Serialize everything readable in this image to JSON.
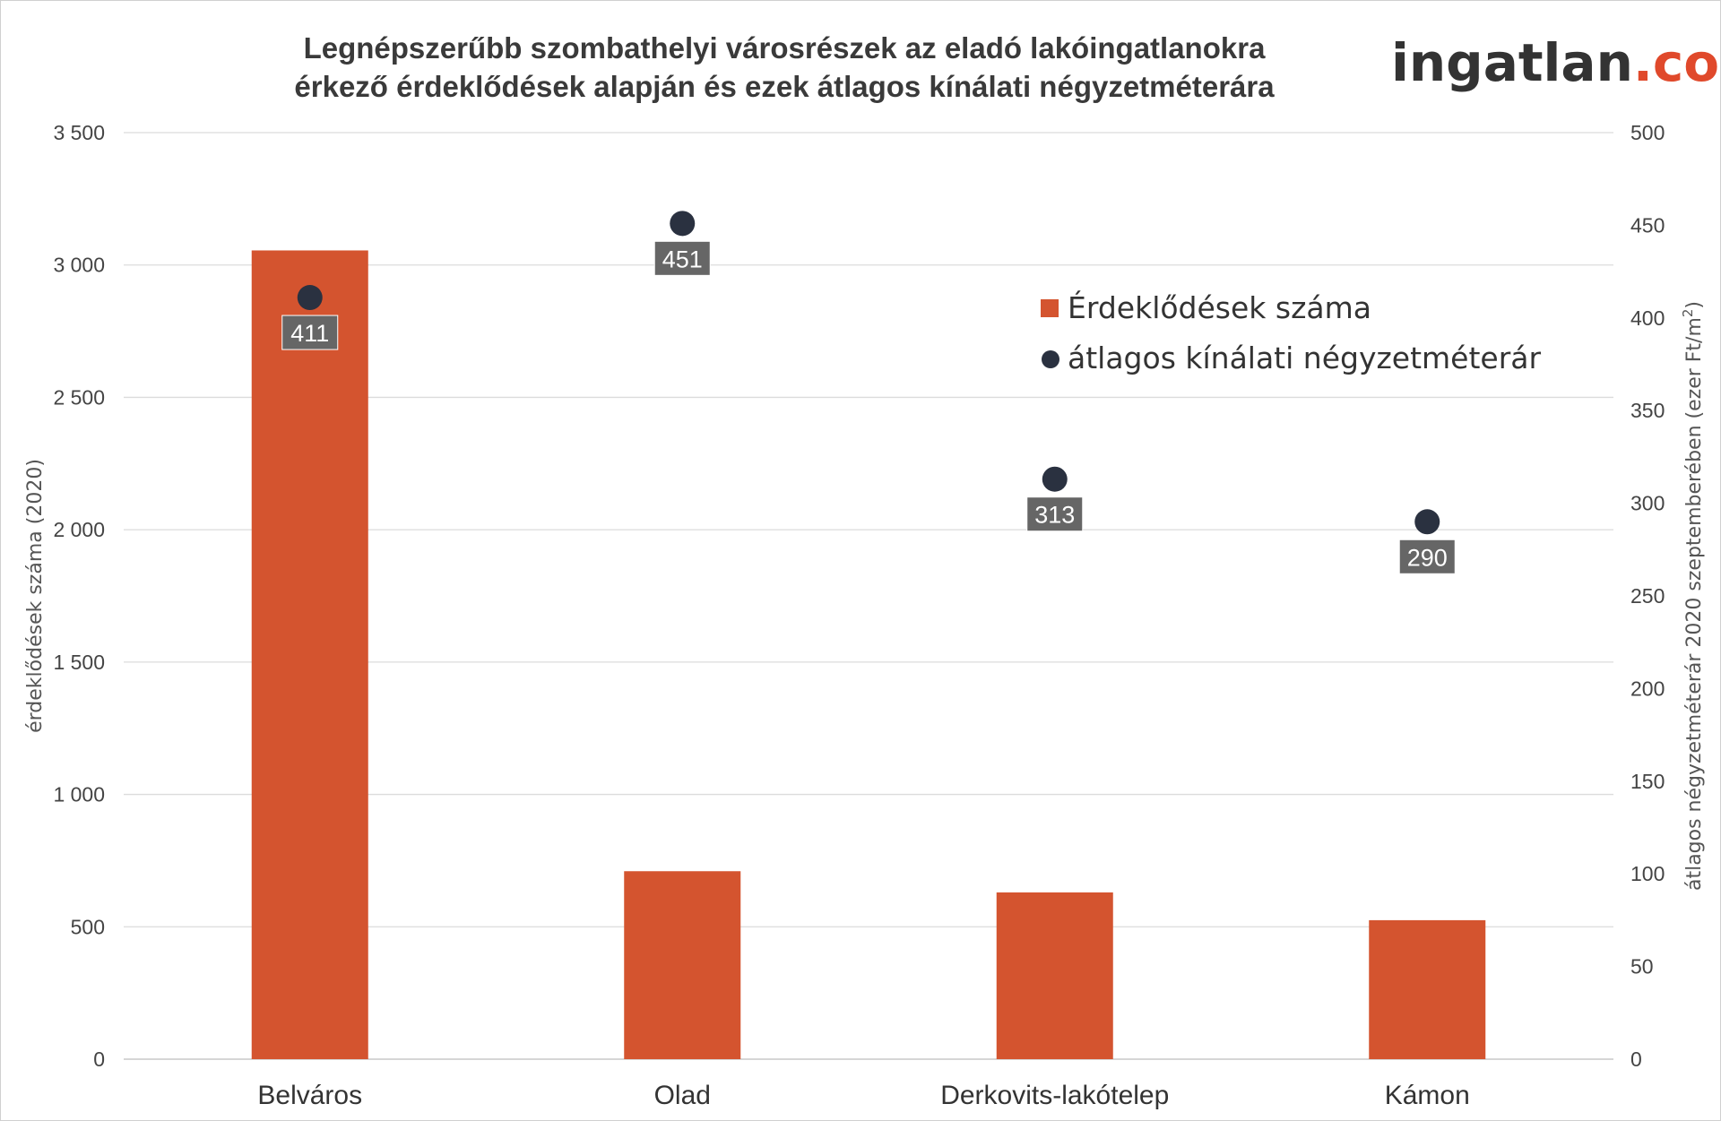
{
  "brand": {
    "name_part": "ingatlan",
    "dot_com_part": ".com",
    "name_color": "#333333",
    "accent_color": "#E0492B"
  },
  "chart_data": {
    "type": "bar",
    "title_lines": [
      "Legnépszerűbb szombathelyi városrészek az eladó lakóingatlanokra",
      "érkező érdeklődések alapján és ezek átlagos kínálati négyzetméterára"
    ],
    "categories": [
      "Belváros",
      "Olad",
      "Derkovits-lakótelep",
      "Kámon"
    ],
    "series": [
      {
        "name": "Érdeklődések száma",
        "type": "bar",
        "axis": "left",
        "color": "#D4542F",
        "values": [
          3055,
          710,
          630,
          525
        ]
      },
      {
        "name": "átlagos kínálati négyzetméterár",
        "type": "scatter",
        "axis": "right",
        "color": "#2A3140",
        "values": [
          411,
          451,
          313,
          290
        ],
        "data_labels": [
          "411",
          "451",
          "313",
          "290"
        ]
      }
    ],
    "ylabel": "érdeklődések száma (2020)",
    "ylabel_right": "átlagos  négyzetméterár  2020  szeptemberében  (ezer Ft/m²)",
    "ylim": [
      0,
      3500
    ],
    "ylim_right": [
      0,
      500
    ],
    "yticks": [
      0,
      500,
      1000,
      1500,
      2000,
      2500,
      3000,
      3500
    ],
    "yticks_labels": [
      "0",
      "500",
      "1 000",
      "1 500",
      "2 000",
      "2 500",
      "3 000",
      "3 500"
    ],
    "yticks_right": [
      0,
      50,
      100,
      150,
      200,
      250,
      300,
      350,
      400,
      450,
      500
    ],
    "yticks_right_labels": [
      "0",
      "50",
      "100",
      "150",
      "200",
      "250",
      "300",
      "350",
      "400",
      "450",
      "500"
    ],
    "grid": true,
    "legend_position": "top-right"
  }
}
